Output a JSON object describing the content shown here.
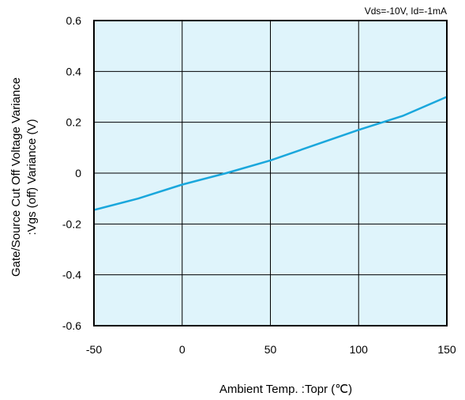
{
  "chart_data": {
    "type": "line",
    "conditions": "Vds=-10V, Id=-1mA",
    "xlabel": "Ambient Temp. :Topr (℃)",
    "ylabel_line1": "Gate/Source Cut Off Voltage Variance",
    "ylabel_line2": ":Vgs (off) Variance (V)",
    "xlim": [
      -50,
      150
    ],
    "ylim": [
      -0.6,
      0.6
    ],
    "xticks": [
      -50,
      0,
      50,
      100,
      150
    ],
    "xtick_labels": [
      "-50",
      "0",
      "50",
      "100",
      "150"
    ],
    "yticks": [
      -0.6,
      -0.4,
      -0.2,
      0,
      0.2,
      0.4,
      0.6
    ],
    "ytick_labels": [
      "-0.6",
      "-0.4",
      "-0.2",
      "0",
      "0.2",
      "0.4",
      "0.6"
    ],
    "grid": true,
    "series": [
      {
        "color": "#1aa7dc",
        "x": [
          -50,
          -25,
          0,
          25,
          50,
          75,
          100,
          125,
          150
        ],
        "y": [
          -0.145,
          -0.1,
          -0.045,
          0.0,
          0.05,
          0.11,
          0.17,
          0.225,
          0.3
        ]
      }
    ],
    "colors": {
      "plot_background": "#dff4fb",
      "grid": "#000000",
      "line": "#1aa7dc"
    }
  }
}
